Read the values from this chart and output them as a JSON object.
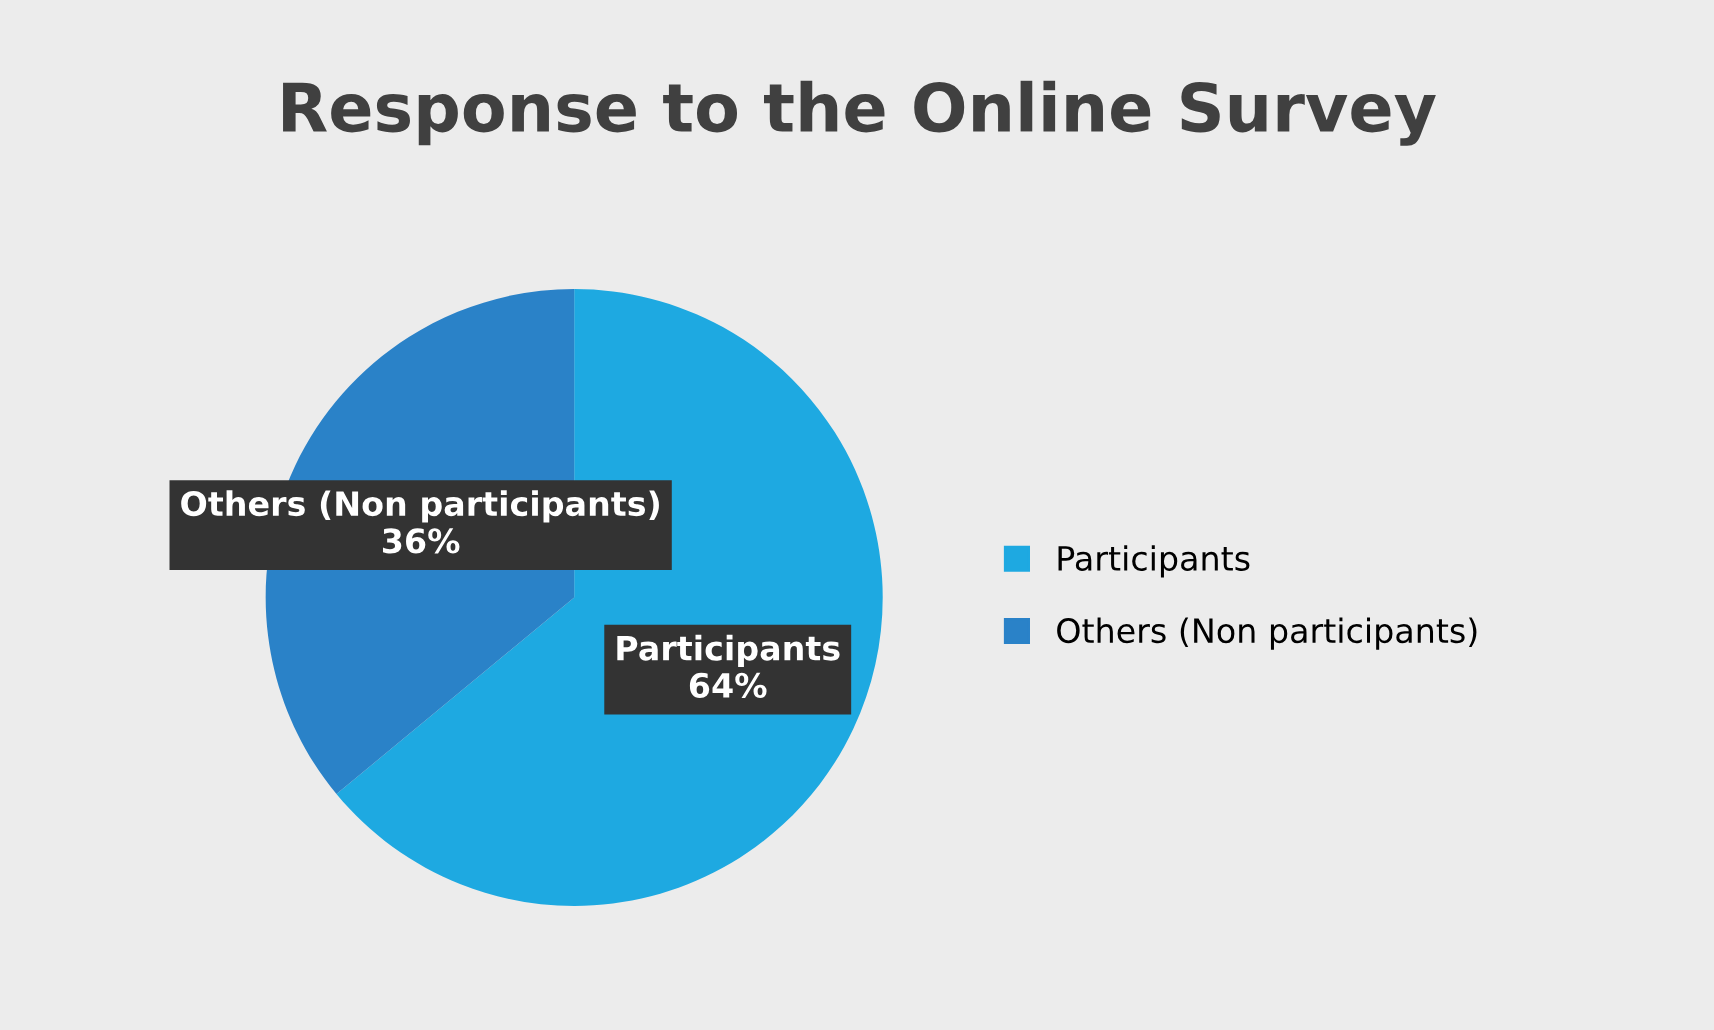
{
  "chart_data": {
    "type": "pie",
    "title": "Response to the Online Survey",
    "categories": [
      "Participants",
      "Others (Non participants)"
    ],
    "values": [
      64,
      36
    ],
    "colors": [
      "#1ea9e1",
      "#2a82c8"
    ],
    "value_labels": [
      "64%",
      "36%"
    ],
    "legend": "right"
  }
}
